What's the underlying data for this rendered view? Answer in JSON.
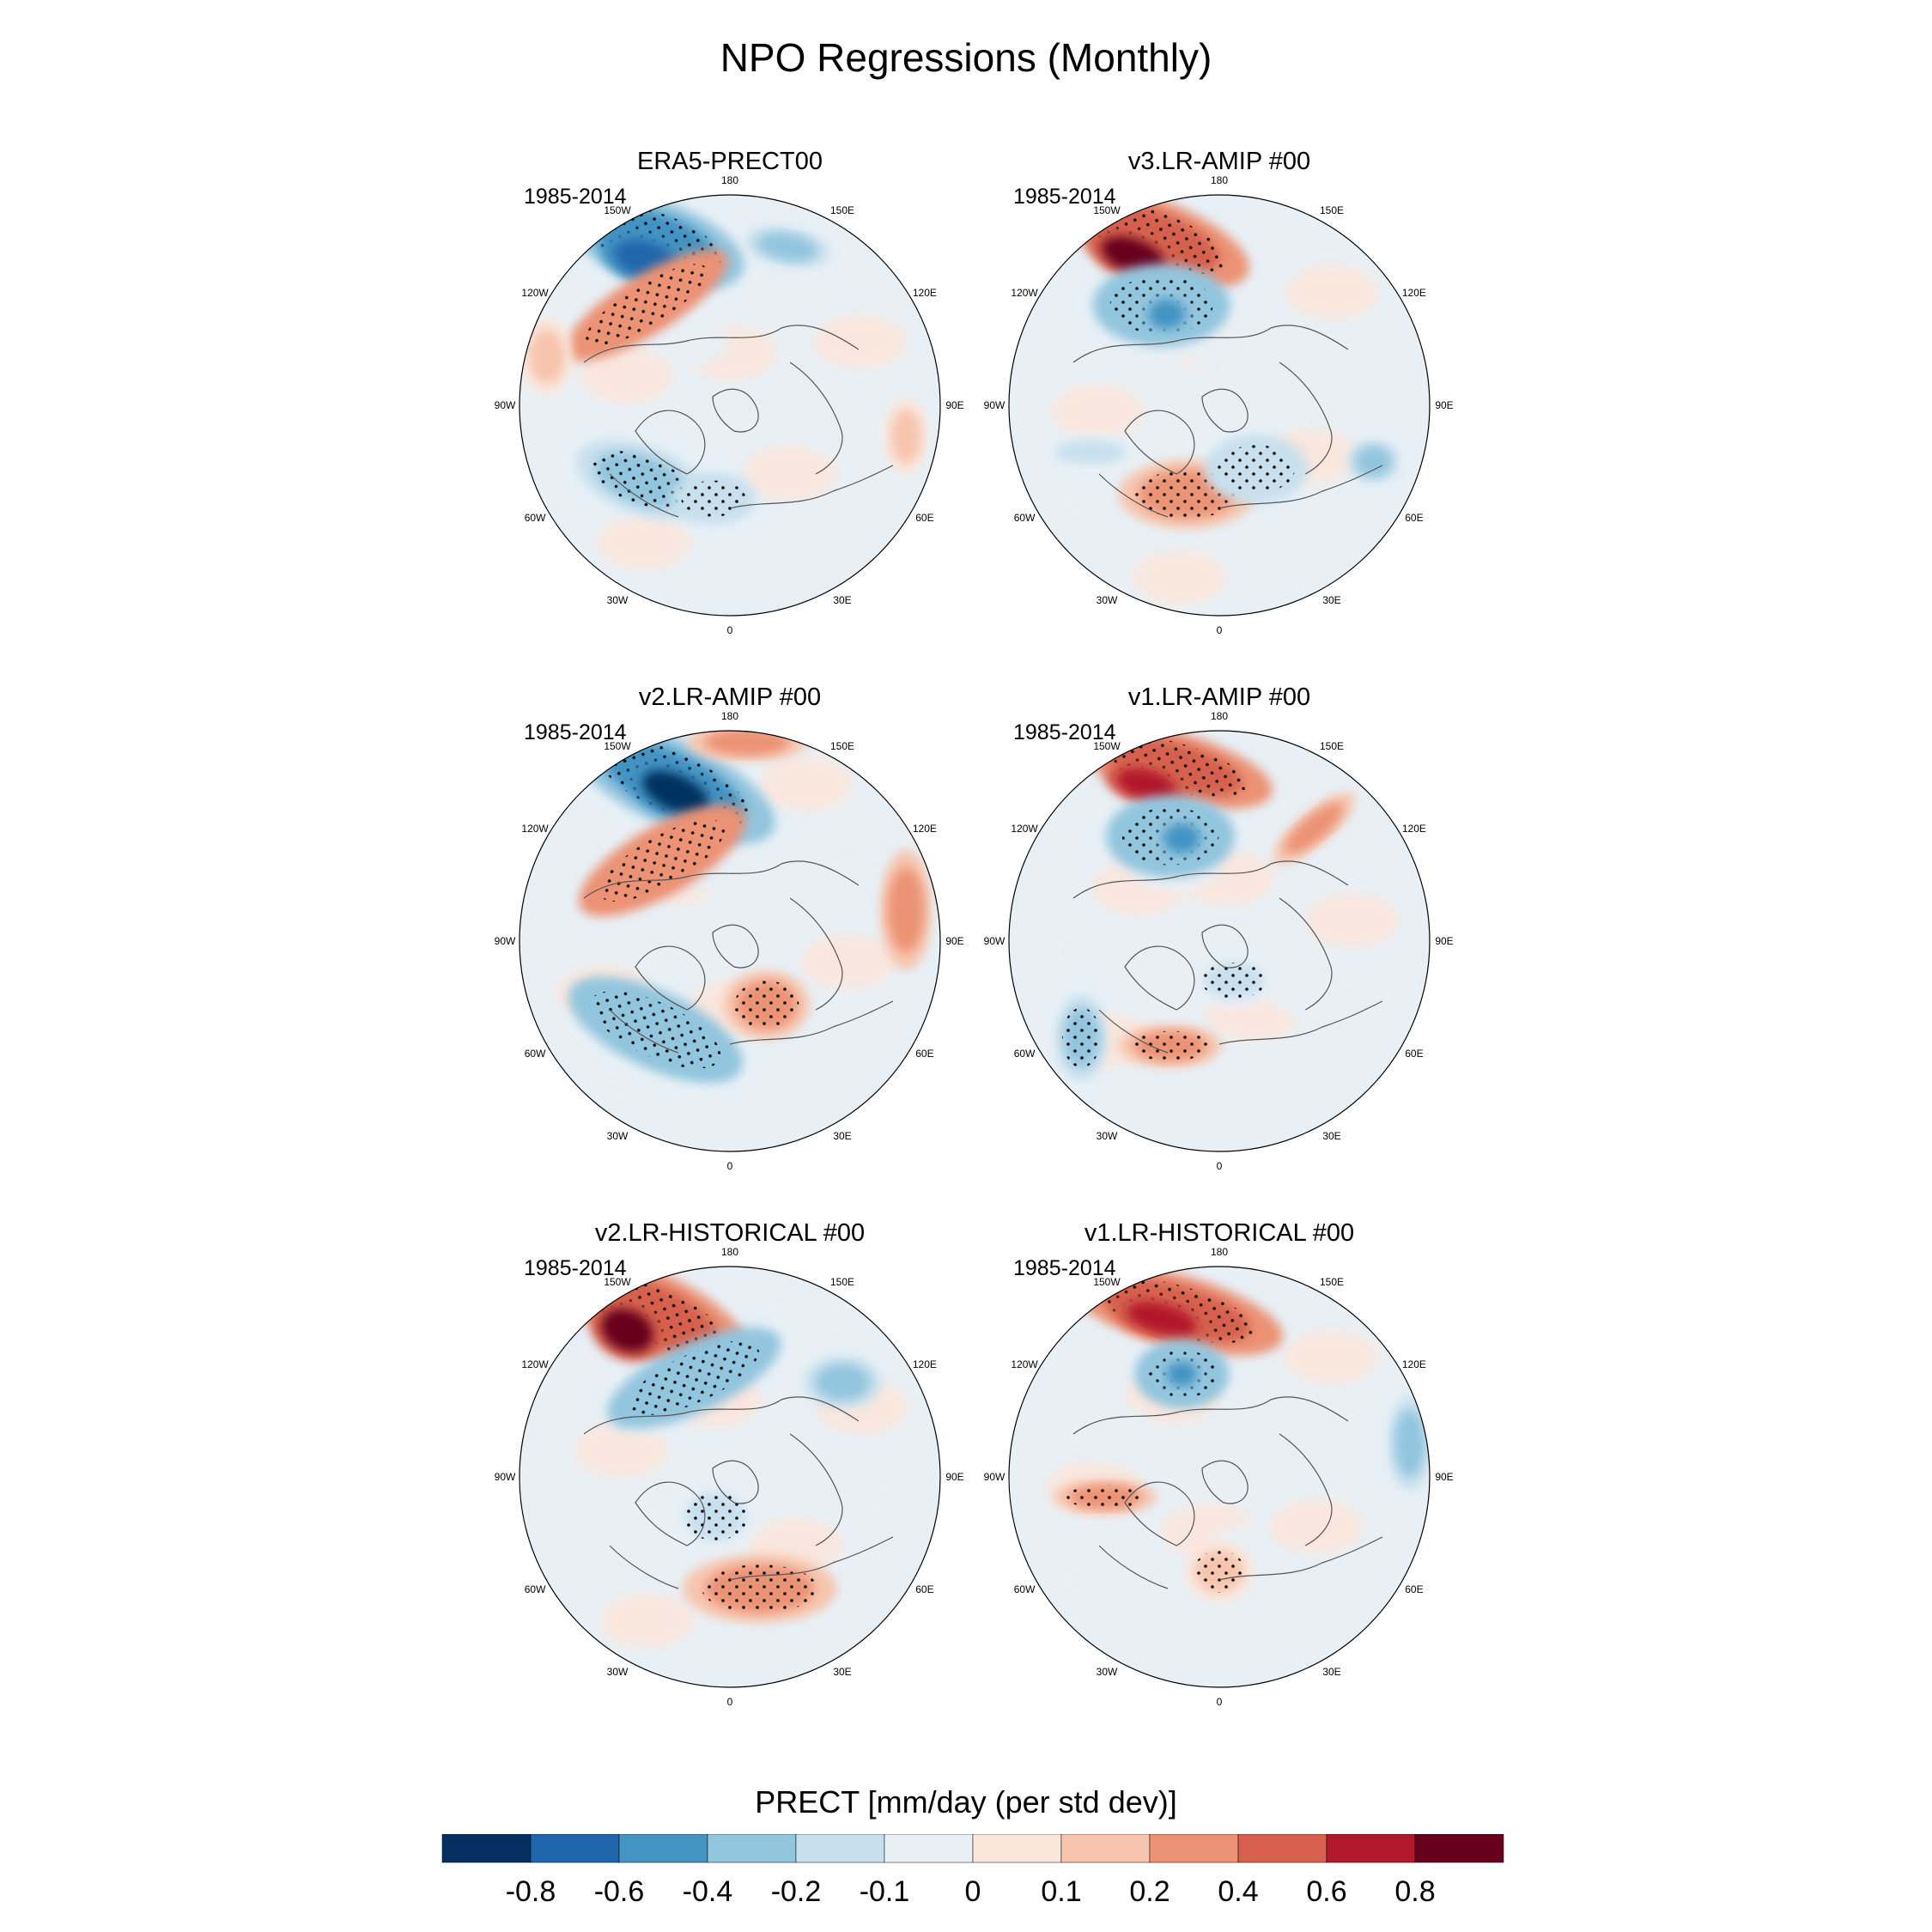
{
  "title": "NPO Regressions (Monthly)",
  "panels": [
    {
      "name": "ERA5-PRECT00",
      "period": "1985-2014",
      "pattern": "era5"
    },
    {
      "name": "v3.LR-AMIP  #00",
      "period": "1985-2014",
      "pattern": "v3amip"
    },
    {
      "name": "v2.LR-AMIP  #00",
      "period": "1985-2014",
      "pattern": "v2amip"
    },
    {
      "name": "v1.LR-AMIP  #00",
      "period": "1985-2014",
      "pattern": "v1amip"
    },
    {
      "name": "v2.LR-HISTORICAL  #00",
      "period": "1985-2014",
      "pattern": "v2hist"
    },
    {
      "name": "v1.LR-HISTORICAL  #00",
      "period": "1985-2014",
      "pattern": "v1hist"
    }
  ],
  "longitude_labels": [
    "180",
    "150E",
    "120E",
    "90E",
    "60E",
    "30E",
    "0",
    "30W",
    "60W",
    "90W",
    "120W",
    "150W"
  ],
  "colorbar": {
    "title": "PRECT [mm/day (per std dev)]",
    "labels": [
      "-0.8",
      "-0.6",
      "-0.4",
      "-0.2",
      "-0.1",
      "0",
      "0.1",
      "0.2",
      "0.4",
      "0.6",
      "0.8"
    ],
    "colors": [
      "#053061",
      "#2166ac",
      "#4393c3",
      "#92c5de",
      "#c8e0ee",
      "#e8f0f6",
      "#fbe6dc",
      "#f7c5ad",
      "#ec9275",
      "#d6604d",
      "#b2182b",
      "#67001f"
    ]
  },
  "chart_data": {
    "type": "heatmap",
    "projection": "north polar stereographic",
    "title": "NPO Regressions (Monthly)",
    "variable": "PRECT",
    "units": "mm/day (per std dev)",
    "levels": [
      -0.8,
      -0.6,
      -0.4,
      -0.2,
      -0.1,
      0,
      0.1,
      0.2,
      0.4,
      0.6,
      0.8
    ],
    "period": "1985-2014",
    "panels": [
      "ERA5-PRECT00",
      "v3.LR-AMIP  #00",
      "v2.LR-AMIP  #00",
      "v1.LR-AMIP  #00",
      "v2.LR-HISTORICAL  #00",
      "v1.LR-HISTORICAL  #00"
    ],
    "stippling": "statistically significant regions"
  }
}
